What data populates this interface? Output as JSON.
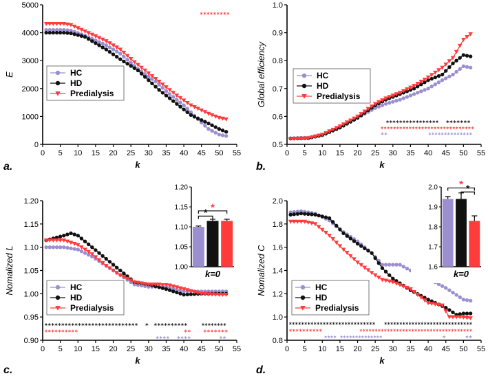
{
  "colors": {
    "HC": "#9b8fcf",
    "HD": "#111111",
    "Predialysis": "#ff3b3b"
  },
  "chart_data": [
    {
      "panel": "a",
      "panel_label": "a.",
      "type": "line",
      "xlabel": "k",
      "ylabel": "E",
      "xlim": [
        0,
        55
      ],
      "ylim": [
        0,
        5000
      ],
      "xticks": [
        "0",
        "5",
        "10",
        "15",
        "20",
        "25",
        "30",
        "35",
        "40",
        "45",
        "50",
        "55"
      ],
      "yticks": [
        "0",
        "1000",
        "2000",
        "3000",
        "4000",
        "5000"
      ],
      "legend": [
        "HC",
        "HD",
        "Predialysis"
      ],
      "ctrl": {
        "HC": [
          [
            1,
            4100
          ],
          [
            6,
            4100
          ],
          [
            8,
            4080
          ],
          [
            12,
            3900
          ],
          [
            18,
            3550
          ],
          [
            22,
            3250
          ],
          [
            27,
            2700
          ],
          [
            32,
            2250
          ],
          [
            36,
            1800
          ],
          [
            40,
            1400
          ],
          [
            44,
            900
          ],
          [
            47,
            550
          ],
          [
            50,
            350
          ],
          [
            52,
            300
          ]
        ],
        "HD": [
          [
            1,
            4000
          ],
          [
            6,
            4000
          ],
          [
            8,
            3980
          ],
          [
            12,
            3850
          ],
          [
            18,
            3400
          ],
          [
            22,
            3050
          ],
          [
            27,
            2650
          ],
          [
            30,
            2300
          ],
          [
            33,
            1950
          ],
          [
            37,
            1550
          ],
          [
            42,
            1050
          ],
          [
            47,
            750
          ],
          [
            50,
            550
          ],
          [
            52,
            450
          ]
        ],
        "Predialysis": [
          [
            1,
            4320
          ],
          [
            6,
            4320
          ],
          [
            8,
            4280
          ],
          [
            12,
            4050
          ],
          [
            18,
            3700
          ],
          [
            22,
            3400
          ],
          [
            26,
            2950
          ],
          [
            30,
            2550
          ],
          [
            34,
            2150
          ],
          [
            38,
            1750
          ],
          [
            42,
            1400
          ],
          [
            47,
            1100
          ],
          [
            50,
            950
          ],
          [
            52,
            900
          ]
        ]
      },
      "stars": [
        {
          "text": "*********",
          "color": "#ff3b3b",
          "y": 4650,
          "x1": 44.5,
          "x2": 53
        }
      ]
    },
    {
      "panel": "b",
      "panel_label": "b.",
      "type": "line",
      "xlabel": "k",
      "ylabel": "Global efficiency",
      "xlim": [
        0,
        55
      ],
      "ylim": [
        0.5,
        1.0
      ],
      "xticks": [
        "0",
        "5",
        "10",
        "15",
        "20",
        "25",
        "30",
        "35",
        "40",
        "45",
        "50",
        "55"
      ],
      "yticks": [
        "0.5",
        "0.6",
        "0.7",
        "0.8",
        "0.9",
        "1.0"
      ],
      "legend": [
        "HC",
        "HD",
        "Predialysis"
      ],
      "ctrl": {
        "HC": [
          [
            1,
            0.522
          ],
          [
            6,
            0.524
          ],
          [
            10,
            0.535
          ],
          [
            15,
            0.56
          ],
          [
            20,
            0.595
          ],
          [
            25,
            0.63
          ],
          [
            28,
            0.645
          ],
          [
            32,
            0.66
          ],
          [
            36,
            0.68
          ],
          [
            40,
            0.7
          ],
          [
            44,
            0.73
          ],
          [
            47,
            0.75
          ],
          [
            50,
            0.78
          ],
          [
            52,
            0.775
          ]
        ],
        "HD": [
          [
            1,
            0.521
          ],
          [
            6,
            0.522
          ],
          [
            10,
            0.533
          ],
          [
            15,
            0.56
          ],
          [
            20,
            0.595
          ],
          [
            25,
            0.64
          ],
          [
            28,
            0.66
          ],
          [
            32,
            0.68
          ],
          [
            36,
            0.7
          ],
          [
            40,
            0.73
          ],
          [
            44,
            0.75
          ],
          [
            47,
            0.79
          ],
          [
            50,
            0.82
          ],
          [
            52,
            0.815
          ]
        ],
        "Predialysis": [
          [
            1,
            0.52
          ],
          [
            6,
            0.522
          ],
          [
            10,
            0.535
          ],
          [
            15,
            0.565
          ],
          [
            20,
            0.6
          ],
          [
            25,
            0.645
          ],
          [
            28,
            0.665
          ],
          [
            32,
            0.685
          ],
          [
            36,
            0.71
          ],
          [
            40,
            0.74
          ],
          [
            44,
            0.775
          ],
          [
            47,
            0.81
          ],
          [
            50,
            0.875
          ],
          [
            52,
            0.895
          ]
        ]
      },
      "stars": [
        {
          "text": "****************",
          "color": "#111111",
          "y": 0.578,
          "x1": 28,
          "x2": 43
        },
        {
          "text": "*******",
          "color": "#111111",
          "y": 0.578,
          "x1": 45,
          "x2": 52
        },
        {
          "text": "******************************",
          "color": "#ff3b3b",
          "y": 0.556,
          "x1": 26.5,
          "x2": 53
        },
        {
          "text": "**",
          "color": "#9b8fcf",
          "y": 0.535,
          "x1": 26.5,
          "x2": 28.5
        },
        {
          "text": "**************",
          "color": "#9b8fcf",
          "y": 0.535,
          "x1": 40,
          "x2": 52.5
        }
      ]
    },
    {
      "panel": "c",
      "panel_label": "c.",
      "type": "line",
      "xlabel": "k",
      "ylabel": "Nomalized L",
      "xlim": [
        0,
        55
      ],
      "ylim": [
        0.9,
        1.2
      ],
      "xticks": [
        "0",
        "5",
        "10",
        "15",
        "20",
        "25",
        "30",
        "35",
        "40",
        "45",
        "50",
        "55"
      ],
      "yticks": [
        "0.90",
        "0.95",
        "1.00",
        "1.05",
        "1.10",
        "1.15",
        "1.20"
      ],
      "legend": [
        "HC",
        "HD",
        "Predialysis"
      ],
      "ctrl": {
        "HC": [
          [
            1,
            1.1
          ],
          [
            6,
            1.1
          ],
          [
            10,
            1.095
          ],
          [
            14,
            1.08
          ],
          [
            18,
            1.06
          ],
          [
            22,
            1.04
          ],
          [
            26,
            1.02
          ],
          [
            30,
            1.015
          ],
          [
            35,
            1.015
          ],
          [
            40,
            1.005
          ],
          [
            45,
            1.005
          ],
          [
            50,
            1.005
          ],
          [
            52,
            1.005
          ]
        ],
        "HD": [
          [
            1,
            1.115
          ],
          [
            6,
            1.125
          ],
          [
            8,
            1.13
          ],
          [
            10,
            1.125
          ],
          [
            14,
            1.1
          ],
          [
            18,
            1.075
          ],
          [
            22,
            1.05
          ],
          [
            26,
            1.025
          ],
          [
            30,
            1.02
          ],
          [
            35,
            1.01
          ],
          [
            40,
            0.998
          ],
          [
            45,
            1.0
          ],
          [
            50,
            1.0
          ],
          [
            52,
            1.0
          ]
        ],
        "Predialysis": [
          [
            1,
            1.115
          ],
          [
            6,
            1.115
          ],
          [
            10,
            1.105
          ],
          [
            14,
            1.085
          ],
          [
            18,
            1.06
          ],
          [
            22,
            1.04
          ],
          [
            26,
            1.025
          ],
          [
            30,
            1.02
          ],
          [
            35,
            1.02
          ],
          [
            40,
            1.01
          ],
          [
            45,
            1.0
          ],
          [
            50,
            0.998
          ],
          [
            52,
            0.998
          ]
        ]
      },
      "stars": [
        {
          "text": "****************************",
          "color": "#111111",
          "y": 0.932,
          "x1": 0.5,
          "x2": 27
        },
        {
          "text": "*",
          "color": "#111111",
          "y": 0.932,
          "x1": 29,
          "x2": 30
        },
        {
          "text": "**********",
          "color": "#111111",
          "y": 0.932,
          "x1": 31.5,
          "x2": 41
        },
        {
          "text": "********",
          "color": "#111111",
          "y": 0.932,
          "x1": 45,
          "x2": 52
        },
        {
          "text": "**********",
          "color": "#ff3b3b",
          "y": 0.918,
          "x1": 0.5,
          "x2": 10
        },
        {
          "text": "**",
          "color": "#ff3b3b",
          "y": 0.918,
          "x1": 40,
          "x2": 42
        },
        {
          "text": "*******",
          "color": "#ff3b3b",
          "y": 0.918,
          "x1": 45.5,
          "x2": 52.5
        },
        {
          "text": "****",
          "color": "#9b8fcf",
          "y": 0.904,
          "x1": 32,
          "x2": 36
        },
        {
          "text": "****",
          "color": "#9b8fcf",
          "y": 0.904,
          "x1": 38,
          "x2": 42
        },
        {
          "text": "**",
          "color": "#9b8fcf",
          "y": 0.904,
          "x1": 50,
          "x2": 52
        }
      ],
      "inset": {
        "type": "bar",
        "categories": [
          "HC",
          "HD",
          "Predialysis"
        ],
        "values": [
          1.1,
          1.115,
          1.115
        ],
        "errors": [
          0.002,
          0.004,
          0.004
        ],
        "ylim": [
          1.0,
          1.2
        ],
        "yticks": [
          "1.00",
          "1.05",
          "1.10",
          "1.15",
          "1.20"
        ],
        "xlabel": "k=0",
        "sig": [
          {
            "from": 0,
            "to": 2,
            "y": 1.14,
            "label": "*",
            "color": "#ff3b3b"
          },
          {
            "from": 0,
            "to": 1,
            "y": 1.127,
            "label": "*",
            "color": "#111111"
          }
        ]
      }
    },
    {
      "panel": "d",
      "panel_label": "d.",
      "type": "line",
      "xlabel": "k",
      "ylabel": "Nomalized C",
      "xlim": [
        0,
        55
      ],
      "ylim": [
        0.8,
        2.0
      ],
      "xticks": [
        "0",
        "5",
        "10",
        "15",
        "20",
        "25",
        "30",
        "35",
        "40",
        "45",
        "50",
        "55"
      ],
      "yticks": [
        "0.8",
        "1.0",
        "1.2",
        "1.4",
        "1.6",
        "1.8",
        "2.0"
      ],
      "legend": [
        "HC",
        "HD",
        "Predialysis"
      ],
      "ctrl": {
        "HC": [
          [
            1,
            1.9
          ],
          [
            4,
            1.91
          ],
          [
            8,
            1.89
          ],
          [
            12,
            1.83
          ],
          [
            16,
            1.73
          ],
          [
            20,
            1.65
          ],
          [
            24,
            1.55
          ],
          [
            27,
            1.45
          ],
          [
            30,
            1.45
          ],
          [
            32,
            1.45
          ],
          [
            35,
            1.4
          ],
          [
            40,
            1.33
          ],
          [
            45,
            1.25
          ],
          [
            50,
            1.15
          ],
          [
            52,
            1.14
          ]
        ],
        "HD": [
          [
            1,
            1.88
          ],
          [
            4,
            1.89
          ],
          [
            8,
            1.88
          ],
          [
            12,
            1.85
          ],
          [
            16,
            1.72
          ],
          [
            20,
            1.63
          ],
          [
            24,
            1.55
          ],
          [
            27,
            1.42
          ],
          [
            30,
            1.33
          ],
          [
            35,
            1.23
          ],
          [
            40,
            1.15
          ],
          [
            45,
            1.08
          ],
          [
            48,
            1.02
          ],
          [
            50,
            1.03
          ],
          [
            52,
            1.03
          ]
        ],
        "Predialysis": [
          [
            1,
            1.82
          ],
          [
            5,
            1.82
          ],
          [
            8,
            1.8
          ],
          [
            12,
            1.7
          ],
          [
            16,
            1.58
          ],
          [
            20,
            1.47
          ],
          [
            24,
            1.38
          ],
          [
            27,
            1.32
          ],
          [
            30,
            1.3
          ],
          [
            35,
            1.24
          ],
          [
            40,
            1.12
          ],
          [
            44,
            1.1
          ],
          [
            46,
            1.0
          ],
          [
            49,
            1.0
          ],
          [
            52,
            0.99
          ]
        ]
      },
      "stars": [
        {
          "text": "****************************",
          "color": "#111111",
          "y": 0.935,
          "x1": 0.5,
          "x2": 25
        },
        {
          "text": "*****************************",
          "color": "#111111",
          "y": 0.935,
          "x1": 27.5,
          "x2": 52.5
        },
        {
          "text": "**********",
          "color": "#ff3b3b",
          "y": 0.878,
          "x1": 0.5,
          "x2": 10
        },
        {
          "text": "*************************************",
          "color": "#ff3b3b",
          "y": 0.878,
          "x1": 20.5,
          "x2": 52.5
        },
        {
          "text": "****",
          "color": "#9b8fcf",
          "y": 0.822,
          "x1": 10.5,
          "x2": 14
        },
        {
          "text": "**************",
          "color": "#9b8fcf",
          "y": 0.822,
          "x1": 15,
          "x2": 27
        },
        {
          "text": "*",
          "color": "#9b8fcf",
          "y": 0.822,
          "x1": 44,
          "x2": 45
        },
        {
          "text": "**",
          "color": "#9b8fcf",
          "y": 0.822,
          "x1": 50.5,
          "x2": 52.5
        }
      ],
      "inset": {
        "type": "bar",
        "categories": [
          "HC",
          "HD",
          "Predialysis"
        ],
        "values": [
          1.94,
          1.94,
          1.83
        ],
        "errors": [
          0.012,
          0.03,
          0.025
        ],
        "ylim": [
          1.6,
          2.0
        ],
        "yticks": [
          "1.6",
          "1.7",
          "1.8",
          "1.9",
          "2.0"
        ],
        "xlabel": "k=0",
        "sig": [
          {
            "from": 0,
            "to": 2,
            "y": 1.995,
            "label": "*",
            "color": "#ff3b3b"
          },
          {
            "from": 1,
            "to": 2,
            "y": 1.975,
            "label": "*",
            "color": "#111111"
          }
        ]
      }
    }
  ]
}
